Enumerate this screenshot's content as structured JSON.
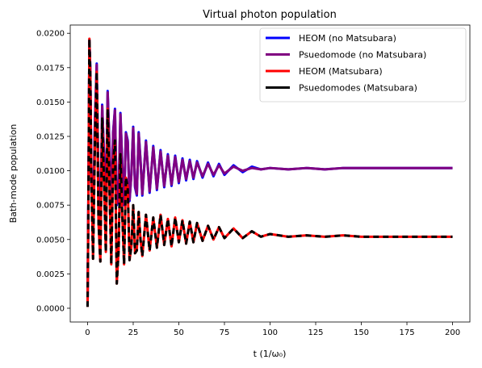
{
  "chart_data": {
    "type": "line",
    "title": "Virtual photon population",
    "xlabel": "t (1/ω₀)",
    "ylabel": "Bath-mode population",
    "xlim": [
      -9.5,
      209.5
    ],
    "ylim": [
      -0.001,
      0.0206
    ],
    "x_ticks": [
      0,
      25,
      50,
      75,
      100,
      125,
      150,
      175,
      200
    ],
    "x_tick_labels": [
      "0",
      "25",
      "50",
      "75",
      "100",
      "125",
      "150",
      "175",
      "200"
    ],
    "y_ticks": [
      0.0,
      0.0025,
      0.005,
      0.0075,
      0.01,
      0.0125,
      0.015,
      0.0175,
      0.02
    ],
    "y_tick_labels": [
      "0.0000",
      "0.0025",
      "0.0050",
      "0.0075",
      "0.0100",
      "0.0125",
      "0.0150",
      "0.0175",
      "0.0200"
    ],
    "grid": false,
    "legend_position": "top-right",
    "series": [
      {
        "name": "HEOM (no Matsubara)",
        "color": "#0000ff",
        "style": "solid",
        "x": [
          0,
          0.5,
          1,
          1.5,
          2,
          3,
          4,
          5,
          6,
          7,
          8,
          9,
          10,
          11,
          12,
          13,
          14,
          15,
          16,
          17,
          18,
          19,
          20,
          21,
          22,
          23,
          24,
          25,
          26,
          27,
          28,
          29,
          30,
          32,
          34,
          36,
          38,
          40,
          42,
          44,
          46,
          48,
          50,
          52,
          54,
          56,
          58,
          60,
          63,
          66,
          69,
          72,
          75,
          80,
          85,
          90,
          95,
          100,
          110,
          120,
          130,
          140,
          150,
          160,
          170,
          180,
          190,
          200
        ],
        "y": [
          0.0002,
          0.009,
          0.0195,
          0.0175,
          0.0105,
          0.0052,
          0.0135,
          0.0178,
          0.0088,
          0.0055,
          0.0148,
          0.0112,
          0.0065,
          0.0158,
          0.0118,
          0.0068,
          0.0128,
          0.0145,
          0.0075,
          0.0082,
          0.0142,
          0.0105,
          0.0075,
          0.0128,
          0.0122,
          0.0078,
          0.0098,
          0.0132,
          0.0088,
          0.0082,
          0.0128,
          0.0108,
          0.0082,
          0.0122,
          0.0084,
          0.0118,
          0.0086,
          0.0115,
          0.0088,
          0.0112,
          0.0089,
          0.0111,
          0.0091,
          0.0109,
          0.0093,
          0.0108,
          0.0094,
          0.0107,
          0.0095,
          0.0106,
          0.0096,
          0.0105,
          0.0097,
          0.0104,
          0.0099,
          0.0103,
          0.0101,
          0.0102,
          0.0101,
          0.0102,
          0.0101,
          0.0102,
          0.0102,
          0.0102,
          0.0102,
          0.0102,
          0.0102,
          0.0102
        ]
      },
      {
        "name": "Psuedomode (no Matsubara)",
        "color": "#800080",
        "style": "solid",
        "x": [
          0,
          0.5,
          1,
          1.5,
          2,
          3,
          4,
          5,
          6,
          7,
          8,
          9,
          10,
          11,
          12,
          13,
          14,
          15,
          16,
          17,
          18,
          19,
          20,
          21,
          22,
          23,
          24,
          25,
          26,
          27,
          28,
          29,
          30,
          32,
          34,
          36,
          38,
          40,
          42,
          44,
          46,
          48,
          50,
          52,
          54,
          56,
          58,
          60,
          63,
          66,
          69,
          72,
          75,
          80,
          85,
          90,
          95,
          100,
          110,
          120,
          130,
          140,
          150,
          160,
          170,
          180,
          190,
          200
        ],
        "y": [
          0.0002,
          0.009,
          0.0194,
          0.0174,
          0.0106,
          0.0053,
          0.0134,
          0.0177,
          0.0089,
          0.0056,
          0.0147,
          0.0111,
          0.0066,
          0.0157,
          0.0117,
          0.0069,
          0.0127,
          0.0144,
          0.0076,
          0.0083,
          0.0141,
          0.0104,
          0.0076,
          0.0127,
          0.0121,
          0.0079,
          0.0097,
          0.0131,
          0.0089,
          0.0083,
          0.0127,
          0.0107,
          0.0083,
          0.0121,
          0.0085,
          0.0117,
          0.0087,
          0.0114,
          0.0089,
          0.0111,
          0.009,
          0.011,
          0.0092,
          0.0108,
          0.0094,
          0.0107,
          0.0095,
          0.0106,
          0.0096,
          0.0105,
          0.0097,
          0.0104,
          0.0098,
          0.0103,
          0.01,
          0.0102,
          0.0101,
          0.0102,
          0.0101,
          0.0102,
          0.0101,
          0.0102,
          0.0102,
          0.0102,
          0.0102,
          0.0102,
          0.0102,
          0.0102
        ]
      },
      {
        "name": "HEOM (Matsubara)",
        "color": "#ff0000",
        "style": "solid",
        "x": [
          0,
          0.5,
          1,
          1.5,
          2,
          3,
          4,
          5,
          6,
          7,
          8,
          9,
          10,
          11,
          12,
          13,
          14,
          15,
          16,
          17,
          18,
          19,
          20,
          21,
          22,
          23,
          24,
          25,
          26,
          27,
          28,
          29,
          30,
          32,
          34,
          36,
          38,
          40,
          42,
          44,
          46,
          48,
          50,
          52,
          54,
          56,
          58,
          60,
          63,
          66,
          69,
          72,
          75,
          80,
          85,
          90,
          95,
          100,
          110,
          120,
          130,
          140,
          150,
          160,
          170,
          180,
          190,
          200
        ],
        "y": [
          0.0001,
          0.0085,
          0.0196,
          0.0168,
          0.0098,
          0.0036,
          0.0118,
          0.0172,
          0.0062,
          0.0034,
          0.0138,
          0.0092,
          0.0041,
          0.0145,
          0.0088,
          0.0032,
          0.0105,
          0.0122,
          0.0018,
          0.0042,
          0.0112,
          0.0068,
          0.0032,
          0.0095,
          0.0088,
          0.0035,
          0.0045,
          0.0075,
          0.004,
          0.0042,
          0.007,
          0.005,
          0.0038,
          0.0068,
          0.0042,
          0.0066,
          0.0044,
          0.0068,
          0.0046,
          0.0065,
          0.0045,
          0.0066,
          0.0048,
          0.0064,
          0.0047,
          0.0063,
          0.0048,
          0.0062,
          0.0049,
          0.006,
          0.005,
          0.0059,
          0.0051,
          0.0058,
          0.0051,
          0.0056,
          0.0052,
          0.0054,
          0.0052,
          0.0053,
          0.0052,
          0.0053,
          0.0052,
          0.0052,
          0.0052,
          0.0052,
          0.0052,
          0.0052
        ]
      },
      {
        "name": "Psuedomodes (Matsubara)",
        "color": "#000000",
        "style": "solid",
        "x": [
          0,
          0.5,
          1,
          1.5,
          2,
          3,
          4,
          5,
          6,
          7,
          8,
          9,
          10,
          11,
          12,
          13,
          14,
          15,
          16,
          17,
          18,
          19,
          20,
          21,
          22,
          23,
          24,
          25,
          26,
          27,
          28,
          29,
          30,
          32,
          34,
          36,
          38,
          40,
          42,
          44,
          46,
          48,
          50,
          52,
          54,
          56,
          58,
          60,
          63,
          66,
          69,
          72,
          75,
          80,
          85,
          90,
          95,
          100,
          110,
          120,
          130,
          140,
          150,
          160,
          170,
          180,
          190,
          200
        ],
        "y": [
          0.0001,
          0.0085,
          0.0196,
          0.0168,
          0.0098,
          0.0036,
          0.0118,
          0.0172,
          0.0062,
          0.0034,
          0.0138,
          0.0092,
          0.0041,
          0.0145,
          0.0088,
          0.0032,
          0.0105,
          0.0122,
          0.0018,
          0.0042,
          0.0112,
          0.0068,
          0.0032,
          0.0095,
          0.0088,
          0.0035,
          0.0045,
          0.0075,
          0.004,
          0.0042,
          0.007,
          0.005,
          0.0038,
          0.0068,
          0.0042,
          0.0066,
          0.0044,
          0.0068,
          0.0046,
          0.0065,
          0.0045,
          0.0066,
          0.0048,
          0.0064,
          0.0047,
          0.0063,
          0.0048,
          0.0062,
          0.0049,
          0.006,
          0.005,
          0.0059,
          0.0051,
          0.0058,
          0.0051,
          0.0056,
          0.0052,
          0.0054,
          0.0052,
          0.0053,
          0.0052,
          0.0053,
          0.0052,
          0.0052,
          0.0052,
          0.0052,
          0.0052,
          0.0052
        ]
      }
    ]
  }
}
